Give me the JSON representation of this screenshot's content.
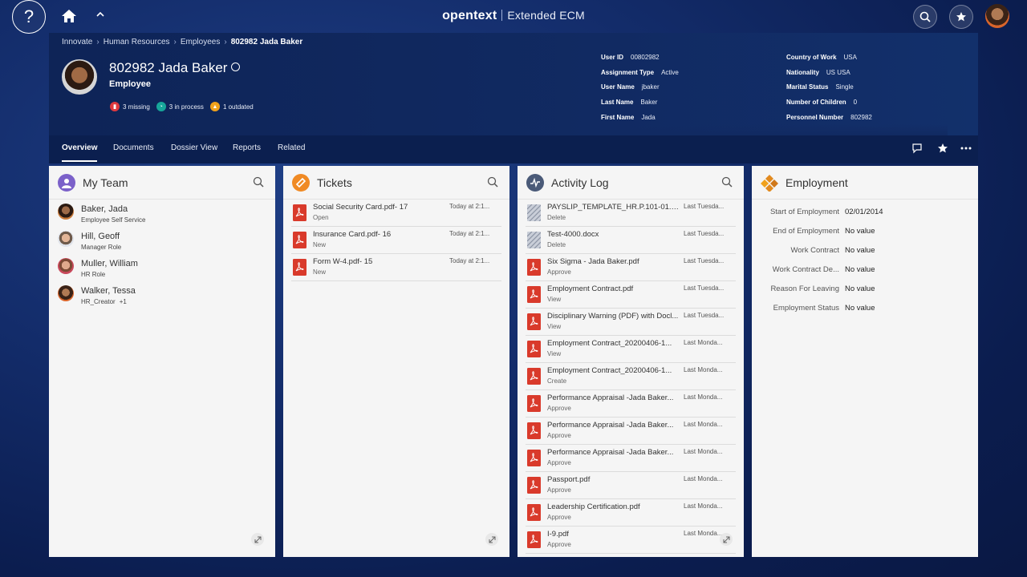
{
  "topbar": {
    "help_glyph": "?",
    "brand_logo": "opentext",
    "brand_product": "Extended ECM",
    "icons": [
      "help-icon",
      "home-icon",
      "chevron-up-icon",
      "search-icon",
      "star-icon",
      "user-avatar"
    ]
  },
  "breadcrumb": [
    "Innovate",
    "Human Resources",
    "Employees",
    "802982 Jada Baker"
  ],
  "profile": {
    "name": "802982 Jada Baker",
    "role": "Employee",
    "status": [
      {
        "count_label": "3 missing",
        "color": "#e0393e"
      },
      {
        "count_label": "3 in process",
        "color": "#17a69a"
      },
      {
        "count_label": "1 outdated",
        "color": "#f0a11b"
      }
    ]
  },
  "info_left": [
    {
      "label": "User ID",
      "value": "00802982"
    },
    {
      "label": "Assignment Type",
      "value": "Active"
    },
    {
      "label": "User Name",
      "value": "jbaker"
    },
    {
      "label": "Last Name",
      "value": "Baker"
    },
    {
      "label": "First Name",
      "value": "Jada"
    }
  ],
  "info_right": [
    {
      "label": "Country of Work",
      "value": "USA"
    },
    {
      "label": "Nationality",
      "value": "US USA"
    },
    {
      "label": "Marital Status",
      "value": "Single"
    },
    {
      "label": "Number of Children",
      "value": "0"
    },
    {
      "label": "Personnel Number",
      "value": "802982"
    }
  ],
  "tabs": [
    "Overview",
    "Documents",
    "Dossier View",
    "Reports",
    "Related"
  ],
  "panels": {
    "team": {
      "title": "My Team",
      "members": [
        {
          "name": "Baker, Jada",
          "role": "Employee Self Service",
          "extra": ""
        },
        {
          "name": "Hill, Geoff",
          "role": "Manager Role",
          "extra": ""
        },
        {
          "name": "Muller, William",
          "role": "HR Role",
          "extra": ""
        },
        {
          "name": "Walker, Tessa",
          "role": "HR_Creator",
          "extra": "+1"
        }
      ]
    },
    "tickets": {
      "title": "Tickets",
      "items": [
        {
          "title": "Social Security Card.pdf- 17",
          "status": "Open",
          "time": "Today at 2:1..."
        },
        {
          "title": "Insurance Card.pdf- 16",
          "status": "New",
          "time": "Today at 2:1..."
        },
        {
          "title": "Form W-4.pdf- 15",
          "status": "New",
          "time": "Today at 2:1..."
        }
      ]
    },
    "activity": {
      "title": "Activity Log",
      "items": [
        {
          "title": "PAYSLIP_TEMPLATE_HR.P.101-01.0...",
          "action": "Delete",
          "time": "Last Tuesda...",
          "type": "doc"
        },
        {
          "title": "Test-4000.docx",
          "action": "Delete",
          "time": "Last Tuesda...",
          "type": "doc"
        },
        {
          "title": "Six Sigma - Jada Baker.pdf",
          "action": "Approve",
          "time": "Last Tuesda...",
          "type": "pdf"
        },
        {
          "title": "Employment Contract.pdf",
          "action": "View",
          "time": "Last Tuesda...",
          "type": "pdf"
        },
        {
          "title": "Disciplinary Warning (PDF) with Docl...",
          "action": "View",
          "time": "Last Tuesda...",
          "type": "pdf"
        },
        {
          "title": "Employment Contract_20200406-1...",
          "action": "View",
          "time": "Last Monda...",
          "type": "pdf"
        },
        {
          "title": "Employment Contract_20200406-1...",
          "action": "Create",
          "time": "Last Monda...",
          "type": "pdf"
        },
        {
          "title": "Performance Appraisal -Jada Baker...",
          "action": "Approve",
          "time": "Last Monda...",
          "type": "pdf"
        },
        {
          "title": "Performance Appraisal -Jada Baker...",
          "action": "Approve",
          "time": "Last Monda...",
          "type": "pdf"
        },
        {
          "title": "Performance Appraisal -Jada Baker...",
          "action": "Approve",
          "time": "Last Monda...",
          "type": "pdf"
        },
        {
          "title": "Passport.pdf",
          "action": "Approve",
          "time": "Last Monda...",
          "type": "pdf"
        },
        {
          "title": "Leadership Certification.pdf",
          "action": "Approve",
          "time": "Last Monda...",
          "type": "pdf"
        },
        {
          "title": "I-9.pdf",
          "action": "Approve",
          "time": "Last Monda...",
          "type": "pdf"
        }
      ]
    },
    "employment": {
      "title": "Employment",
      "rows": [
        {
          "label": "Start of Employment",
          "value": "02/01/2014"
        },
        {
          "label": "End of Employment",
          "value": "No value"
        },
        {
          "label": "Work Contract",
          "value": "No value"
        },
        {
          "label": "Work Contract De...",
          "value": "No value"
        },
        {
          "label": "Reason For Leaving",
          "value": "No value"
        },
        {
          "label": "Employment Status",
          "value": "No value"
        }
      ]
    }
  },
  "colors": {
    "pdf_red": "#d93a2b",
    "team_icon": "#7b61c9",
    "tickets_icon": "#f08a24",
    "activity_icon": "#4a5a78",
    "employment_icon": "#e28a1e"
  }
}
